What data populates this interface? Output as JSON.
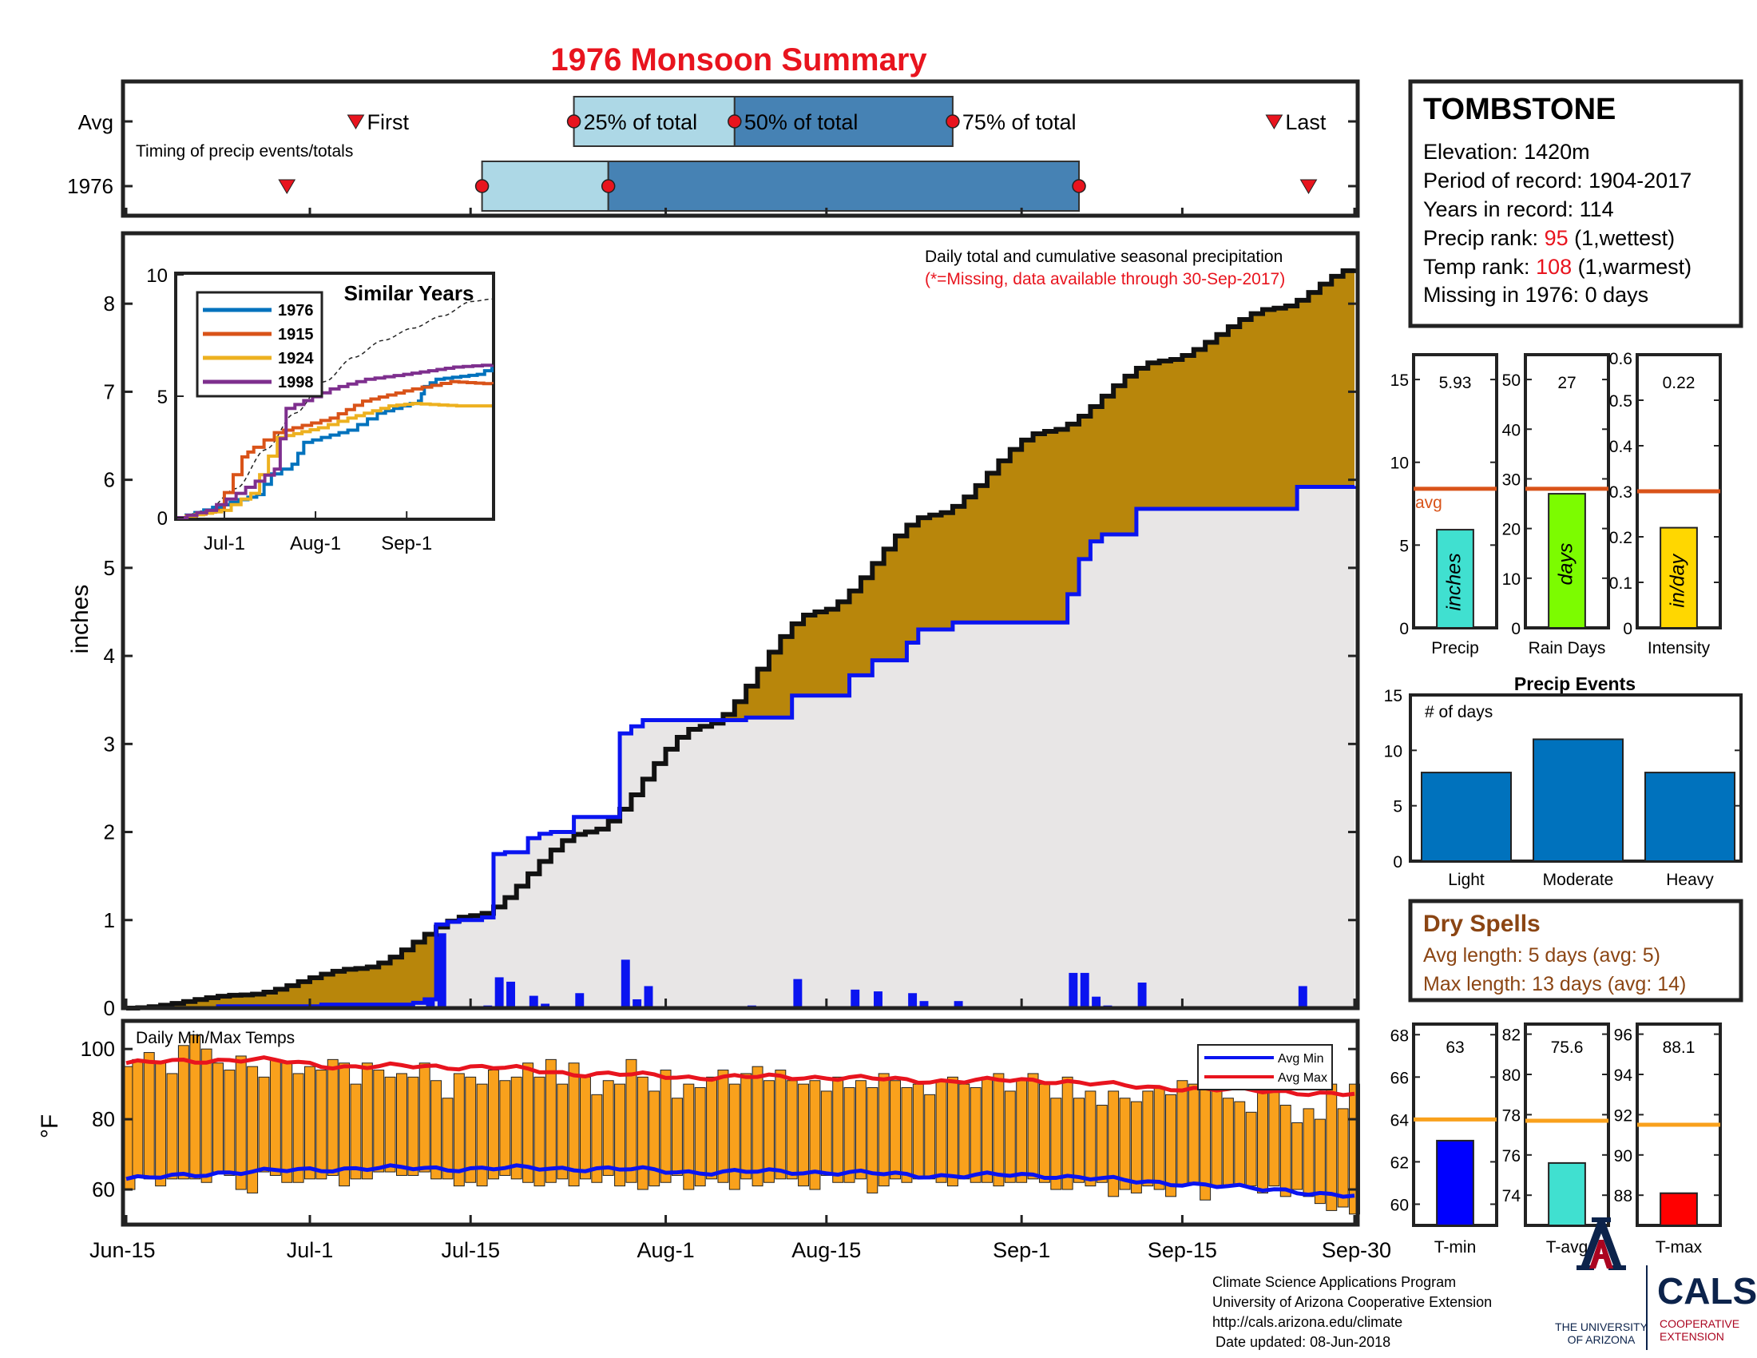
{
  "title": "1976 Monsoon Summary",
  "timing": {
    "row_avg": "Avg",
    "row_year": "1976",
    "caption": "Timing of precip events/totals",
    "first_label": "First",
    "last_label": "Last",
    "p25_label": "25% of total",
    "p50_label": "50% of total",
    "p75_label": "75% of total"
  },
  "station": {
    "name": "TOMBSTONE",
    "elevation": "Elevation: 1420m",
    "period": "Period of record: 1904-2017",
    "years": "Years in record: 114",
    "precip_rank_label": "Precip rank: ",
    "precip_rank_value": "95",
    "precip_rank_note": " (1,wettest)",
    "temp_rank_label": "Temp rank: ",
    "temp_rank_value": "108",
    "temp_rank_note": " (1,warmest)",
    "missing": "Missing in 1976: 0 days"
  },
  "main_chart": {
    "annotation_line1": "Daily total and cumulative seasonal precipitation",
    "annotation_line2": "(*=Missing, data available through 30-Sep-2017)",
    "ylabel": "inches",
    "y_ticks": [
      "0",
      "1",
      "2",
      "3",
      "4",
      "5",
      "6",
      "7",
      "8"
    ],
    "x_ticks": [
      "Jun-15",
      "Jul-1",
      "Jul-15",
      "Aug-1",
      "Aug-15",
      "Sep-1",
      "Sep-15",
      "Sep-30"
    ]
  },
  "inset": {
    "title": "Similar Years",
    "y_ticks": [
      "0",
      "5",
      "10"
    ],
    "x_ticks": [
      "Jul-1",
      "Aug-1",
      "Sep-1"
    ],
    "legend": [
      "1976",
      "1915",
      "1924",
      "1998"
    ]
  },
  "temp_chart": {
    "title": "Daily Min/Max Temps",
    "ylabel": "°F",
    "y_ticks": [
      "60",
      "80",
      "100"
    ],
    "legend_min": "Avg Min",
    "legend_max": "Avg Max"
  },
  "mini_bars": [
    {
      "value_label": "5.93",
      "inner_label": "inches",
      "xlabel": "Precip",
      "avg_label": "avg",
      "ticks": [
        "0",
        "5",
        "10",
        "15"
      ]
    },
    {
      "value_label": "27",
      "inner_label": "days",
      "xlabel": "Rain Days",
      "ticks": [
        "0",
        "10",
        "20",
        "30",
        "40",
        "50"
      ]
    },
    {
      "value_label": "0.22",
      "inner_label": "in/day",
      "xlabel": "Intensity",
      "ticks": [
        "0",
        "0.1",
        "0.2",
        "0.3",
        "0.4",
        "0.5",
        "0.6"
      ]
    }
  ],
  "events": {
    "title": "Precip Events",
    "ylabel_inner": "# of days",
    "ticks": [
      "0",
      "5",
      "10",
      "15"
    ],
    "categories": [
      "Light",
      "Moderate",
      "Heavy"
    ]
  },
  "dry_spells": {
    "title": "Dry Spells",
    "avg_length": "Avg length: 5 days (avg: 5)",
    "max_length": "Max length: 13 days (avg: 14)"
  },
  "temp_mini": [
    {
      "value_label": "63",
      "xlabel": "T-min",
      "ticks": [
        "60",
        "62",
        "64",
        "66",
        "68"
      ]
    },
    {
      "value_label": "75.6",
      "xlabel": "T-avg",
      "ticks": [
        "74",
        "76",
        "78",
        "80",
        "82"
      ]
    },
    {
      "value_label": "88.1",
      "xlabel": "T-max",
      "ticks": [
        "88",
        "90",
        "92",
        "94",
        "96"
      ]
    }
  ],
  "footer": {
    "line1": "Climate Science Applications Program",
    "line2": "University of Arizona Cooperative Extension",
    "line3": "http://cals.arizona.edu/climate",
    "line4": "Date updated: 08-Jun-2018",
    "ua_name_1": "THE UNIVERSITY",
    "ua_name_2": "OF ARIZONA",
    "cals": "CALS",
    "cals_sub_1": "COOPERATIVE",
    "cals_sub_2": "EXTENSION"
  },
  "colors": {
    "title_red": "#e8141e",
    "rank_red": "#e8141e",
    "fill_brown": "#b8860b",
    "fill_gray": "#e8e6e6",
    "line_blue": "#0a14f0",
    "temp_orange": "#f9a11c",
    "avg_red": "#e8141e",
    "light_blue": "#add8e6",
    "steel_blue": "#4682b4",
    "avg_line_orange": "#d95319",
    "bar_precip": "#40e0d0",
    "bar_days": "#7cfc00",
    "bar_intensity": "#ffd700",
    "events_blue": "#0072bd",
    "dry_brown": "#8b4513",
    "tmin_blue": "#0000ff",
    "tavg_teal": "#40e0d0",
    "tmax_red": "#ff0000",
    "temp_avg_orange": "#f9a11c",
    "ua_navy": "#0c234b",
    "ua_red": "#ab0520"
  },
  "chart_data": [
    {
      "type": "area",
      "name_key": "cumulative_precip",
      "x_start": "Jun-15",
      "x_end": "Sep-30",
      "ylim": [
        0,
        8.8
      ],
      "avg_cumulative_anchor_days": [
        0,
        10,
        20,
        30,
        40,
        50,
        60,
        70,
        80,
        90,
        100,
        107
      ],
      "avg_cumulative_anchor_values": [
        0,
        0.15,
        0.45,
        1.05,
        2.0,
        3.2,
        4.5,
        5.6,
        6.55,
        7.35,
        7.95,
        8.4
      ],
      "year_cumulative_steps": [
        {
          "day": 0,
          "value": 0
        },
        {
          "day": 8,
          "value": 0.02
        },
        {
          "day": 17,
          "value": 0.04
        },
        {
          "day": 25,
          "value": 0.06
        },
        {
          "day": 26,
          "value": 0.1
        },
        {
          "day": 27,
          "value": 0.95
        },
        {
          "day": 28,
          "value": 0.98
        },
        {
          "day": 29,
          "value": 1.0
        },
        {
          "day": 31,
          "value": 1.03
        },
        {
          "day": 32,
          "value": 1.75
        },
        {
          "day": 33,
          "value": 1.77
        },
        {
          "day": 35,
          "value": 1.93
        },
        {
          "day": 36,
          "value": 1.98
        },
        {
          "day": 37,
          "value": 2.0
        },
        {
          "day": 39,
          "value": 2.17
        },
        {
          "day": 43,
          "value": 3.12
        },
        {
          "day": 44,
          "value": 3.2
        },
        {
          "day": 45,
          "value": 3.27
        },
        {
          "day": 54,
          "value": 3.3
        },
        {
          "day": 58,
          "value": 3.55
        },
        {
          "day": 63,
          "value": 3.78
        },
        {
          "day": 65,
          "value": 3.95
        },
        {
          "day": 68,
          "value": 4.15
        },
        {
          "day": 69,
          "value": 4.3
        },
        {
          "day": 72,
          "value": 4.38
        },
        {
          "day": 82,
          "value": 4.7
        },
        {
          "day": 83,
          "value": 5.1
        },
        {
          "day": 84,
          "value": 5.3
        },
        {
          "day": 85,
          "value": 5.38
        },
        {
          "day": 88,
          "value": 5.67
        },
        {
          "day": 102,
          "value": 5.92
        },
        {
          "day": 107,
          "value": 5.93
        }
      ],
      "daily_precip_bars": [
        {
          "day": 26,
          "value": 0.1
        },
        {
          "day": 27,
          "value": 0.85
        },
        {
          "day": 30,
          "value": 0.02
        },
        {
          "day": 31,
          "value": 0.03
        },
        {
          "day": 32,
          "value": 0.35
        },
        {
          "day": 33,
          "value": 0.3
        },
        {
          "day": 35,
          "value": 0.14
        },
        {
          "day": 36,
          "value": 0.05
        },
        {
          "day": 37,
          "value": 0.02
        },
        {
          "day": 39,
          "value": 0.17
        },
        {
          "day": 43,
          "value": 0.55
        },
        {
          "day": 44,
          "value": 0.1
        },
        {
          "day": 45,
          "value": 0.25
        },
        {
          "day": 54,
          "value": 0.03
        },
        {
          "day": 58,
          "value": 0.33
        },
        {
          "day": 63,
          "value": 0.21
        },
        {
          "day": 65,
          "value": 0.19
        },
        {
          "day": 68,
          "value": 0.17
        },
        {
          "day": 69,
          "value": 0.08
        },
        {
          "day": 72,
          "value": 0.08
        },
        {
          "day": 82,
          "value": 0.4
        },
        {
          "day": 83,
          "value": 0.4
        },
        {
          "day": 84,
          "value": 0.13
        },
        {
          "day": 85,
          "value": 0.03
        },
        {
          "day": 88,
          "value": 0.29
        },
        {
          "day": 102,
          "value": 0.25
        }
      ]
    },
    {
      "type": "line",
      "name_key": "similar_years",
      "xlabel": "",
      "ylabel": "",
      "ylim": [
        0,
        10
      ],
      "series": [
        {
          "name": "1976",
          "values_by_day": [
            [
              0,
              0
            ],
            [
              27,
              0.95
            ],
            [
              32,
              1.8
            ],
            [
              39,
              2.2
            ],
            [
              43,
              3.1
            ],
            [
              58,
              3.6
            ],
            [
              68,
              4.3
            ],
            [
              82,
              4.8
            ],
            [
              84,
              5.4
            ],
            [
              88,
              5.7
            ],
            [
              102,
              5.9
            ],
            [
              107,
              6.2
            ]
          ]
        },
        {
          "name": "1915",
          "values_by_day": [
            [
              0,
              0
            ],
            [
              13,
              0.3
            ],
            [
              22,
              2.5
            ],
            [
              26,
              2.9
            ],
            [
              33,
              3.5
            ],
            [
              52,
              4.1
            ],
            [
              63,
              4.8
            ],
            [
              80,
              5.3
            ],
            [
              93,
              5.6
            ],
            [
              107,
              5.5
            ]
          ]
        },
        {
          "name": "1924",
          "values_by_day": [
            [
              0,
              0
            ],
            [
              15,
              0.3
            ],
            [
              25,
              1.0
            ],
            [
              34,
              3.3
            ],
            [
              48,
              3.7
            ],
            [
              58,
              4.1
            ],
            [
              72,
              4.6
            ],
            [
              80,
              4.7
            ],
            [
              95,
              4.6
            ],
            [
              107,
              4.6
            ]
          ]
        },
        {
          "name": "1998",
          "values_by_day": [
            [
              0,
              0
            ],
            [
              10,
              0.3
            ],
            [
              20,
              1.0
            ],
            [
              33,
              2.0
            ],
            [
              37,
              4.5
            ],
            [
              52,
              5.3
            ],
            [
              64,
              5.7
            ],
            [
              77,
              5.9
            ],
            [
              94,
              6.2
            ],
            [
              107,
              6.3
            ]
          ]
        }
      ],
      "average_dashed": [
        [
          0,
          0
        ],
        [
          10,
          0.3
        ],
        [
          20,
          1.2
        ],
        [
          30,
          2.8
        ],
        [
          40,
          4.3
        ],
        [
          50,
          5.6
        ],
        [
          60,
          6.6
        ],
        [
          70,
          7.3
        ],
        [
          80,
          7.8
        ],
        [
          90,
          8.3
        ],
        [
          100,
          8.9
        ],
        [
          107,
          9.0
        ]
      ]
    },
    {
      "type": "bar",
      "name_key": "daily_temps",
      "ylim": [
        50,
        108
      ],
      "x_start": "Jun-15",
      "days": 108,
      "tmax": [
        95,
        97,
        99,
        96,
        93,
        101,
        104,
        100,
        96,
        94,
        98,
        95,
        92,
        97,
        96,
        93,
        95,
        94,
        97,
        96,
        90,
        96,
        94,
        92,
        93,
        92,
        96,
        91,
        86,
        93,
        92,
        90,
        94,
        91,
        92,
        96,
        92,
        97,
        90,
        96,
        92,
        87,
        91,
        90,
        97,
        92,
        88,
        94,
        86,
        90,
        89,
        92,
        94,
        90,
        93,
        95,
        91,
        94,
        91,
        90,
        91,
        88,
        92,
        89,
        91,
        89,
        93,
        91,
        89,
        90,
        87,
        91,
        92,
        90,
        89,
        92,
        93,
        88,
        91,
        93,
        90,
        86,
        92,
        86,
        88,
        84,
        88,
        86,
        85,
        88,
        89,
        87,
        91,
        90,
        91,
        88,
        86,
        85,
        82,
        88,
        90,
        84,
        79,
        83,
        80,
        90,
        83,
        90
      ],
      "tmin": [
        60,
        64,
        63,
        61,
        63,
        63,
        63,
        62,
        65,
        64,
        60,
        59,
        65,
        64,
        62,
        62,
        63,
        63,
        64,
        61,
        63,
        63,
        65,
        65,
        64,
        64,
        65,
        63,
        63,
        61,
        62,
        61,
        63,
        64,
        63,
        62,
        61,
        62,
        63,
        61,
        63,
        62,
        64,
        61,
        62,
        60,
        61,
        62,
        64,
        60,
        61,
        63,
        62,
        60,
        63,
        61,
        62,
        63,
        63,
        61,
        60,
        64,
        62,
        62,
        63,
        59,
        61,
        63,
        62,
        63,
        63,
        62,
        61,
        63,
        62,
        62,
        61,
        62,
        62,
        63,
        62,
        60,
        60,
        62,
        61,
        62,
        58,
        60,
        59,
        61,
        60,
        58,
        61,
        62,
        57,
        61,
        61,
        61,
        61,
        59,
        61,
        58,
        60,
        58,
        56,
        54,
        55,
        53
      ],
      "avg_max_by_day": [
        [
          0,
          96
        ],
        [
          10,
          97
        ],
        [
          20,
          95
        ],
        [
          30,
          95
        ],
        [
          40,
          93
        ],
        [
          50,
          92
        ],
        [
          60,
          92
        ],
        [
          70,
          91
        ],
        [
          80,
          91
        ],
        [
          90,
          89
        ],
        [
          100,
          88
        ],
        [
          107,
          87
        ]
      ],
      "avg_min_by_day": [
        [
          0,
          63
        ],
        [
          10,
          65
        ],
        [
          20,
          66
        ],
        [
          30,
          66
        ],
        [
          40,
          66
        ],
        [
          50,
          65
        ],
        [
          60,
          65
        ],
        [
          70,
          64
        ],
        [
          80,
          64
        ],
        [
          90,
          62
        ],
        [
          100,
          60
        ],
        [
          107,
          58
        ]
      ]
    },
    {
      "type": "bar",
      "name_key": "precip_total",
      "values": [
        5.93
      ],
      "avg": 8.4,
      "ylim": [
        0,
        16.5
      ]
    },
    {
      "type": "bar",
      "name_key": "rain_days",
      "values": [
        27
      ],
      "avg": 28,
      "ylim": [
        0,
        55
      ]
    },
    {
      "type": "bar",
      "name_key": "intensity",
      "values": [
        0.22
      ],
      "avg": 0.3,
      "ylim": [
        0,
        0.6
      ]
    },
    {
      "type": "bar",
      "name_key": "precip_events",
      "categories": [
        "Light",
        "Moderate",
        "Heavy"
      ],
      "values": [
        8,
        11,
        8
      ],
      "ylim": [
        0,
        15
      ]
    },
    {
      "type": "bar",
      "name_key": "tmin_mean",
      "values": [
        63
      ],
      "avg": 64,
      "ylim": [
        59,
        68.5
      ]
    },
    {
      "type": "bar",
      "name_key": "tavg_mean",
      "values": [
        75.6
      ],
      "avg": 77.7,
      "ylim": [
        72.5,
        82.5
      ]
    },
    {
      "type": "bar",
      "name_key": "tmax_mean",
      "values": [
        88.1
      ],
      "avg": 91.5,
      "ylim": [
        86.5,
        96.5
      ]
    },
    {
      "type": "bar",
      "name_key": "timing",
      "rows": [
        {
          "row": "Avg",
          "first_day": 20,
          "p25_day": 39,
          "p50_day": 53,
          "p75_day": 72,
          "last_day": 100
        },
        {
          "row": "1976",
          "first_day": 14,
          "p25_day": 31,
          "p50_day": 42,
          "p75_day": 83,
          "last_day": 103
        }
      ]
    }
  ]
}
